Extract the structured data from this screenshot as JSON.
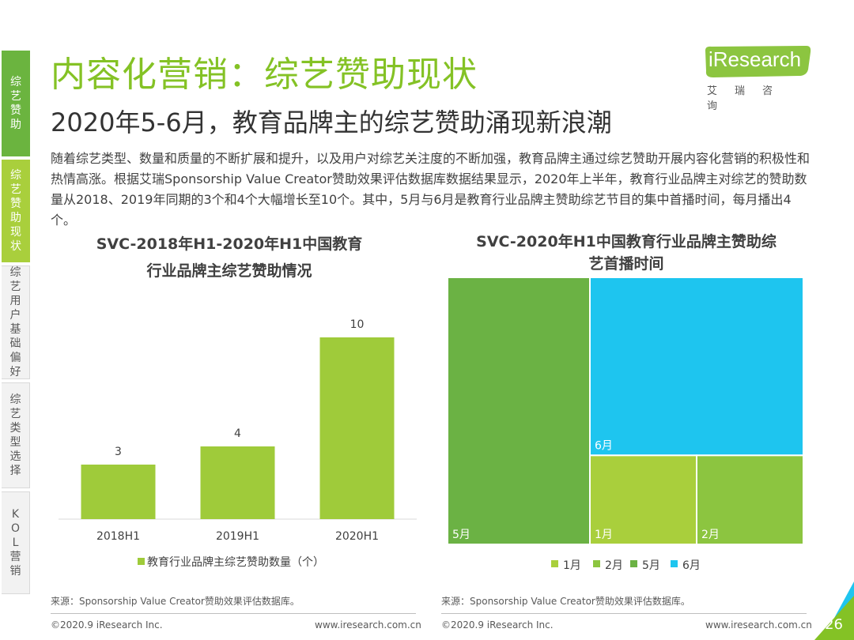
{
  "sidebar": {
    "tabs": [
      {
        "label": "综艺赞助"
      },
      {
        "label": "综艺赞助现状"
      },
      {
        "label": "综艺用户基础偏好"
      },
      {
        "label": "综艺类型选择"
      },
      {
        "label": "KOL营销"
      }
    ]
  },
  "header": {
    "title": "内容化营销：综艺赞助现状",
    "subtitle": "2020年5-6月，教育品牌主的综艺赞助涌现新浪潮"
  },
  "logo": {
    "text": "iResearch",
    "cn": "艾瑞咨询"
  },
  "intro": "随着综艺类型、数量和质量的不断扩展和提升，以及用户对综艺关注度的不断加强，教育品牌主通过综艺赞助开展内容化营销的积极性和热情高涨。根据艾瑞Sponsorship Value Creator赞助效果评估数据库数据结果显示，2020年上半年，教育行业品牌主对综艺的赞助数量从2018、2019年同期的3个和4个大幅增长至10个。其中，5月与6月是教育行业品牌主赞助综艺节目的集中首播时间，每月播出4个。",
  "colors": {
    "title_green": "#84c225",
    "bar_green": "#9fcb3a",
    "m1": "#a9cf3c",
    "m2": "#8cc540",
    "m5": "#6bb244",
    "m6": "#1ec5ef"
  },
  "chart_data": [
    {
      "type": "bar",
      "title": "SVC-2018年H1-2020年H1中国教育行业品牌主综艺赞助情况",
      "title_lines": [
        "SVC-2018年H1-2020年H1中国教育",
        "行业品牌主综艺赞助情况"
      ],
      "categories": [
        "2018H1",
        "2019H1",
        "2020H1"
      ],
      "series": [
        {
          "name": "教育行业品牌主综艺赞助数量（个）",
          "values": [
            3,
            4,
            10
          ]
        }
      ],
      "legend": "bottom",
      "grid": false
    },
    {
      "type": "treemap",
      "title": "SVC-2020年H1中国教育行业品牌主赞助综艺首播时间",
      "title_lines": [
        "SVC-2020年H1中国教育行业品牌主赞助综",
        "艺首播时间"
      ],
      "categories": [
        "1月",
        "2月",
        "5月",
        "6月"
      ],
      "values": [
        1,
        1,
        4,
        4
      ],
      "legend": "bottom"
    }
  ],
  "footer": {
    "source_left": "来源：Sponsorship Value Creator赞助效果评估数据库。",
    "source_right": "来源：Sponsorship Value Creator赞助效果评估数据库。",
    "copyright_left": "©2020.9 iResearch Inc.",
    "url_left": "www.iresearch.com.cn",
    "copyright_right": "©2020.9 iResearch Inc.",
    "url_right": "www.iresearch.com.cn",
    "page_number": "26"
  }
}
